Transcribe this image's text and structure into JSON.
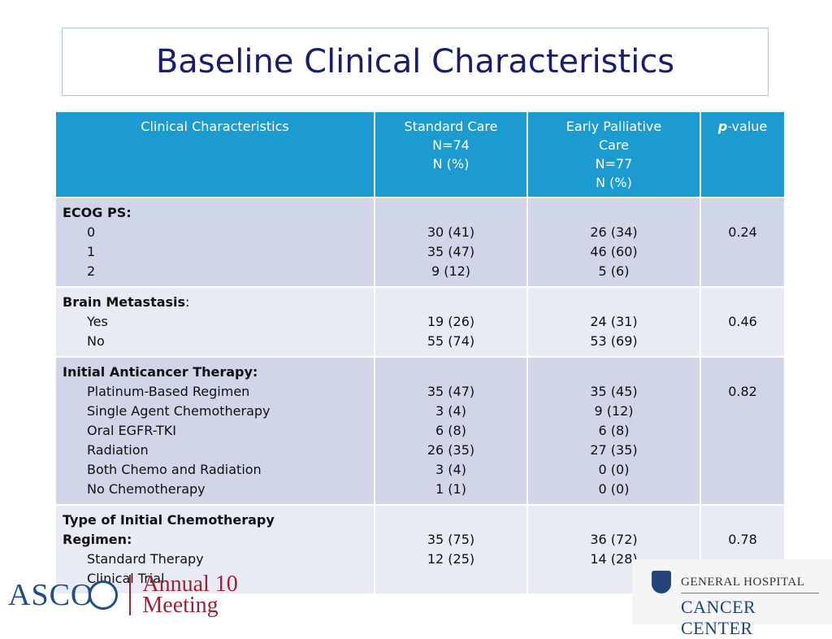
{
  "title": "Baseline Clinical Characteristics",
  "table": {
    "headers": {
      "col1": "Clinical Characteristics",
      "col2": [
        "Standard Care",
        "N=74",
        "N (%)"
      ],
      "col3": [
        "Early Palliative",
        "Care",
        "N=77",
        "N (%)"
      ],
      "col4_italic": "p",
      "col4_rest": "-value"
    },
    "groups": [
      {
        "label": "ECOG PS:",
        "items": [
          "0",
          "1",
          "2"
        ],
        "standard": [
          "30 (41)",
          "35 (47)",
          "9 (12)"
        ],
        "palliative": [
          "26 (34)",
          "46 (60)",
          "5 (6)"
        ],
        "p": "0.24"
      },
      {
        "label": "Brain Metastasis",
        "label_suffix": ":",
        "items": [
          "Yes",
          "No"
        ],
        "standard": [
          "19 (26)",
          "55 (74)"
        ],
        "palliative": [
          "24 (31)",
          "53 (69)"
        ],
        "p": "0.46"
      },
      {
        "label": "Initial Anticancer Therapy:",
        "items": [
          "Platinum-Based Regimen",
          "Single Agent Chemotherapy",
          "Oral EGFR-TKI",
          "Radiation",
          "Both Chemo and Radiation",
          "No Chemotherapy"
        ],
        "standard": [
          "35 (47)",
          "3 (4)",
          "6 (8)",
          "26 (35)",
          "3 (4)",
          "1 (1)"
        ],
        "palliative": [
          "35 (45)",
          "9 (12)",
          "6 (8)",
          "27 (35)",
          "0 (0)",
          "0 (0)"
        ],
        "p": "0.82"
      },
      {
        "label": "Type of Initial Chemotherapy",
        "label2": "Regimen:",
        "items": [
          "Standard Therapy",
          "Clinical Trial"
        ],
        "standard": [
          "35 (75)",
          "12 (25)"
        ],
        "palliative": [
          "36 (72)",
          "14 (28)"
        ],
        "p": "0.78"
      }
    ]
  },
  "footer": {
    "asco_logo": "ASCO",
    "asco_meeting_line1": "Annual 10",
    "asco_meeting_line2": "Meeting",
    "mgh_line1": "GENERAL HOSPITAL",
    "mgh_line2": "CANCER CENTER",
    "colors": {
      "header_blue": "#1b9bd0",
      "title_navy": "#1a1d6e",
      "asco_red": "#9b2335"
    }
  }
}
